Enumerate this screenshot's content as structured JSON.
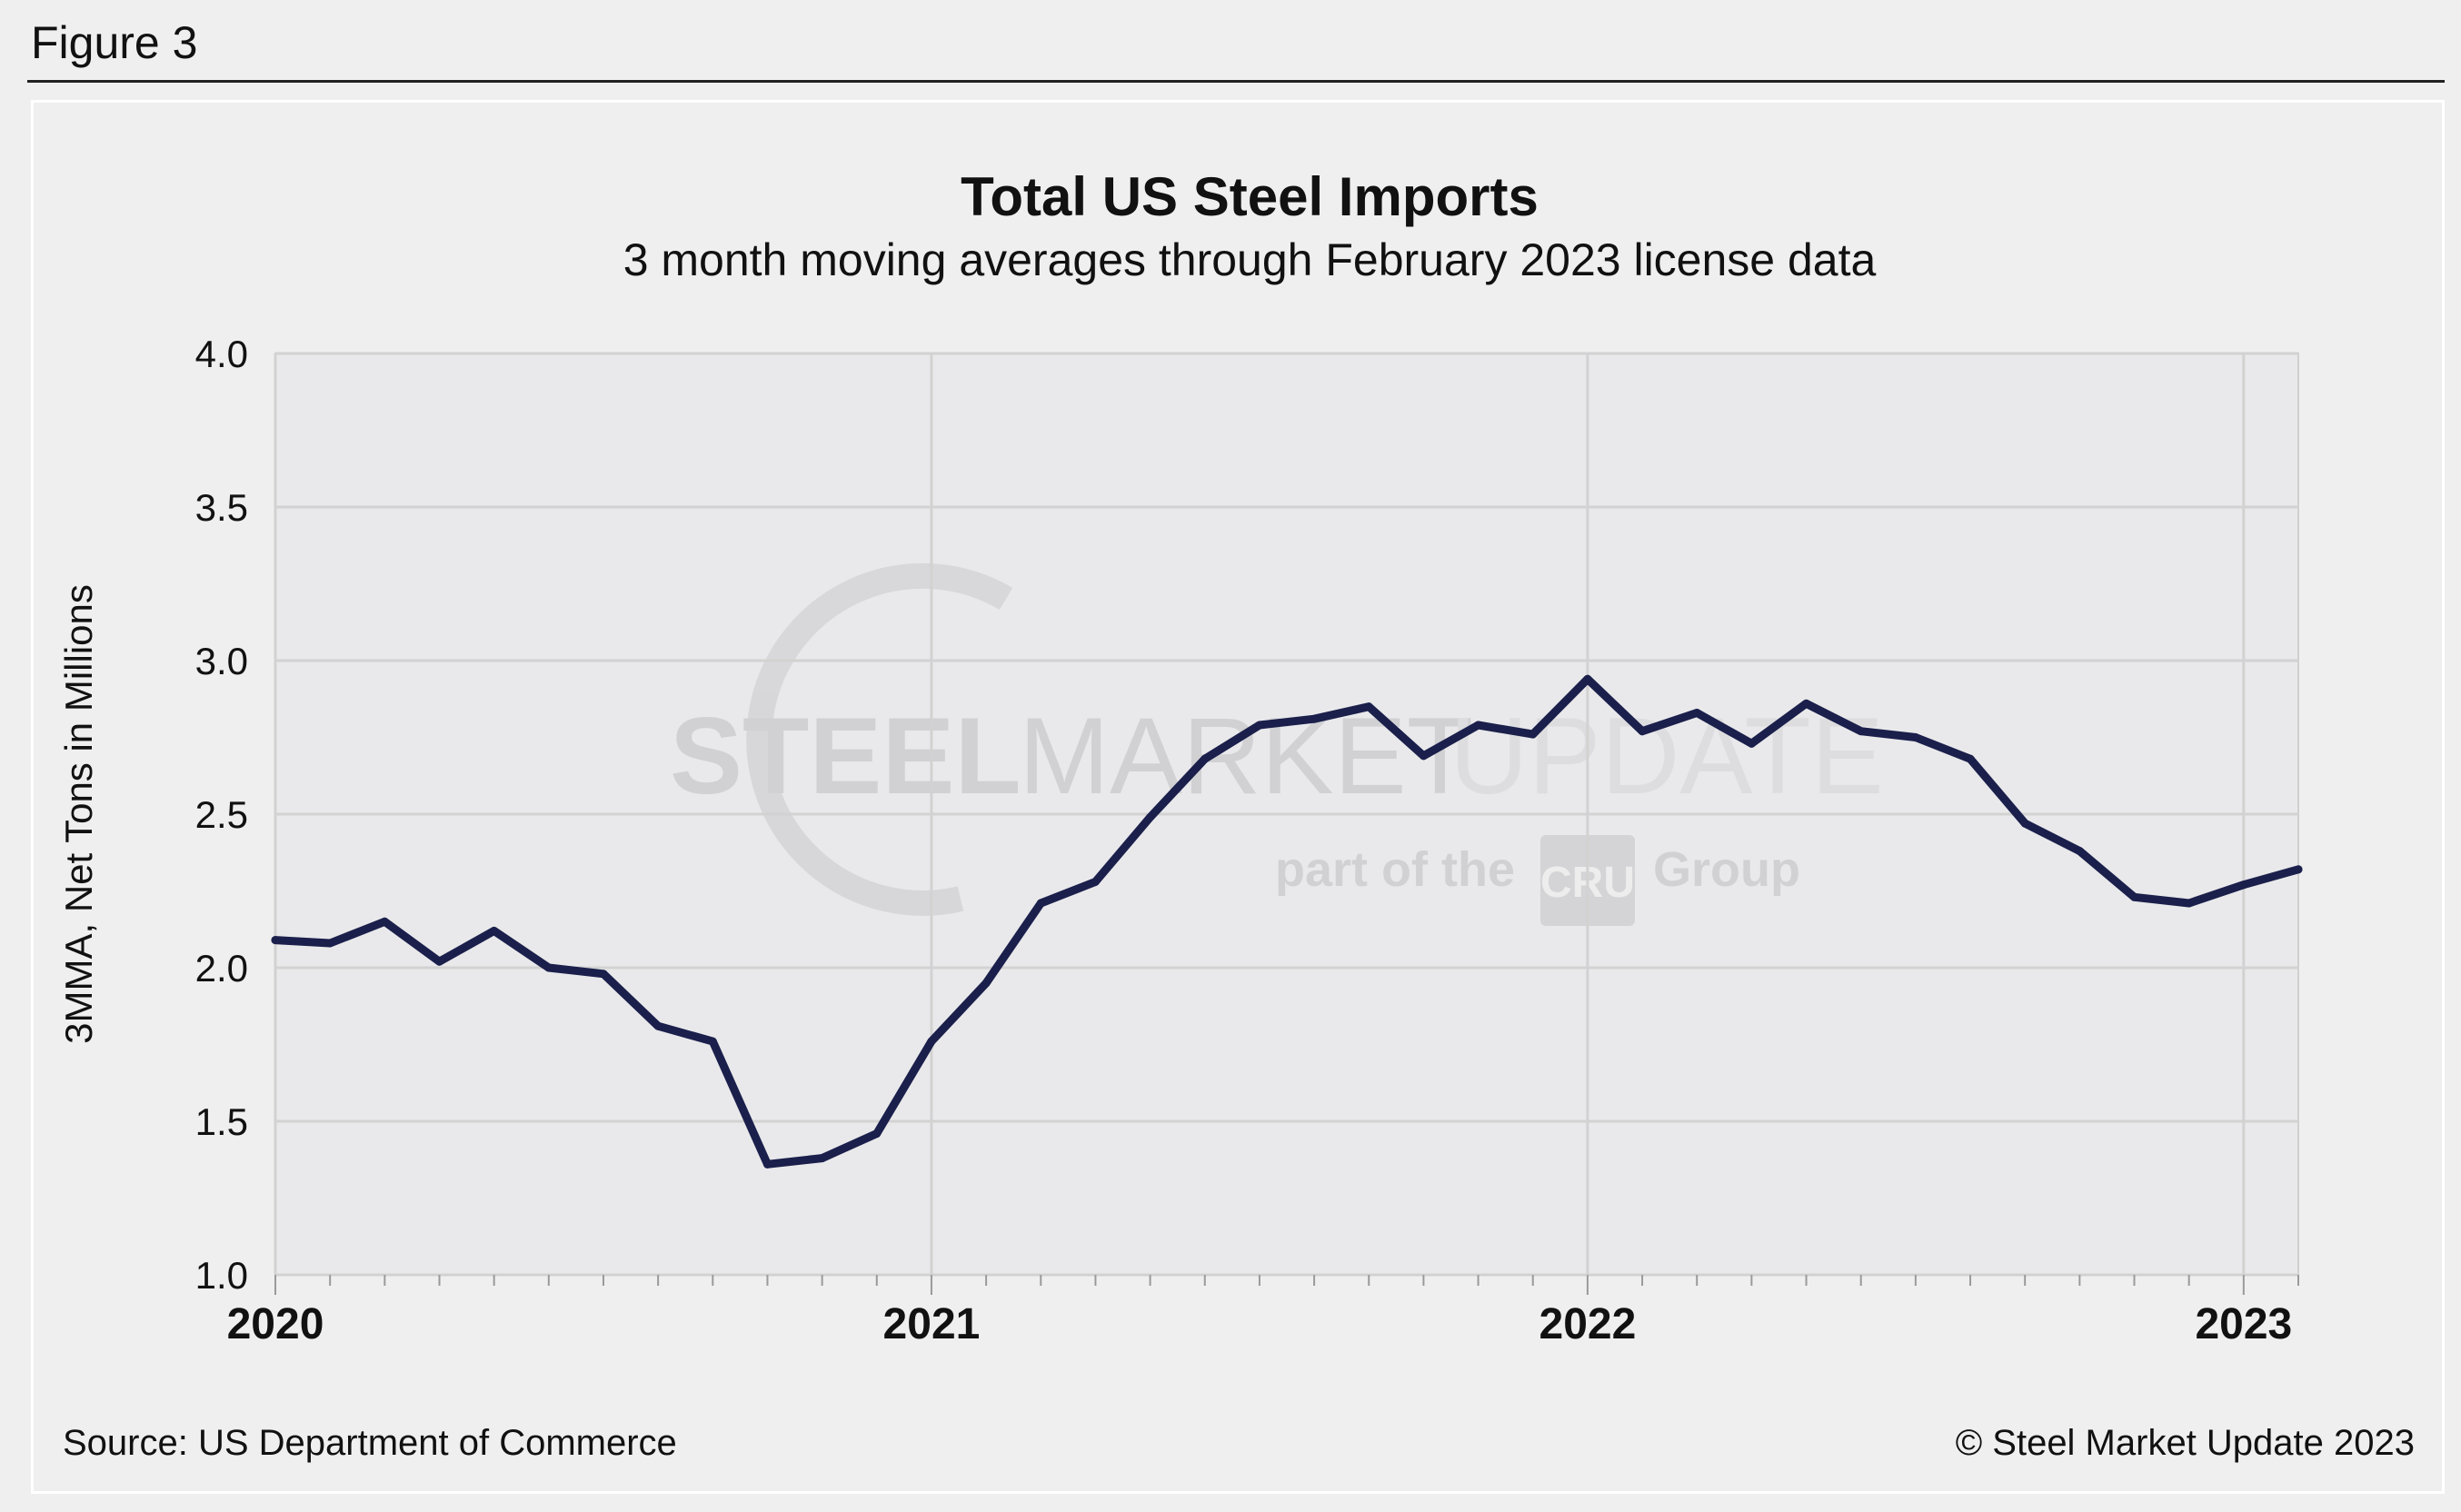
{
  "figure_label": "Figure 3",
  "chart_data": {
    "type": "line",
    "title": "Total US Steel Imports",
    "subtitle": "3 month moving averages through February 2023 license data",
    "xlabel": "",
    "ylabel": "3MMA, Net Tons in Millions",
    "ylim": [
      1.0,
      4.0
    ],
    "yticks": [
      "1.0",
      "1.5",
      "2.0",
      "2.5",
      "3.0",
      "3.5",
      "4.0"
    ],
    "x_major_labels": [
      "2020",
      "2021",
      "2022",
      "2023"
    ],
    "months_range": [
      0,
      37
    ],
    "grid": true,
    "series": [
      {
        "name": "Total US Steel Imports (3MMA)",
        "color": "#1a1f4b",
        "x_month_index": [
          0,
          1,
          2,
          3,
          4,
          5,
          6,
          7,
          8,
          9,
          10,
          11,
          12,
          13,
          14,
          15,
          16,
          17,
          18,
          19,
          20,
          21,
          22,
          23,
          24,
          25,
          26,
          27,
          28,
          29,
          30,
          31,
          32,
          33,
          34,
          35,
          36,
          37
        ],
        "values": [
          2.09,
          2.08,
          2.15,
          2.02,
          2.12,
          2.0,
          1.98,
          1.81,
          1.76,
          1.36,
          1.38,
          1.46,
          1.76,
          1.95,
          2.21,
          2.28,
          2.49,
          2.68,
          2.79,
          2.81,
          2.85,
          2.69,
          2.79,
          2.76,
          2.94,
          2.77,
          2.83,
          2.73,
          2.86,
          2.77,
          2.75,
          2.68,
          2.47,
          2.38,
          2.23,
          2.21,
          2.27,
          2.32
        ]
      }
    ],
    "watermark": {
      "line1_bold": "STEEL",
      "line1_mid": "MARKET",
      "line1_light": "UPDATE",
      "line2_pre": "part of the",
      "line2_badge": "CRU",
      "line2_post": "Group"
    },
    "source": "Source: US Department of Commerce",
    "copyright": "© Steel Market Update 2023"
  }
}
